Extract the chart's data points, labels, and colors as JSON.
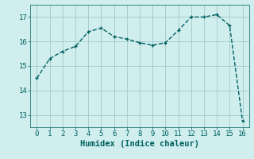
{
  "x": [
    0,
    1,
    2,
    3,
    4,
    5,
    6,
    7,
    8,
    9,
    10,
    11,
    12,
    13,
    14,
    15,
    16
  ],
  "y": [
    14.5,
    15.3,
    15.6,
    15.8,
    16.4,
    16.55,
    16.2,
    16.1,
    15.95,
    15.85,
    15.95,
    16.45,
    17.0,
    17.0,
    17.1,
    16.65,
    12.75
  ],
  "line_color": "#006060",
  "marker": "+",
  "marker_size": 3,
  "line_width": 1.0,
  "line_style": "--",
  "background_color": "#d0eeee",
  "grid_color": "#aacccc",
  "xlabel": "Humidex (Indice chaleur)",
  "xlim": [
    -0.5,
    16.5
  ],
  "ylim": [
    12.5,
    17.5
  ],
  "yticks": [
    13,
    14,
    15,
    16,
    17
  ],
  "xticks": [
    0,
    1,
    2,
    3,
    4,
    5,
    6,
    7,
    8,
    9,
    10,
    11,
    12,
    13,
    14,
    15,
    16
  ],
  "tick_fontsize": 6.5,
  "xlabel_fontsize": 7.5,
  "tick_color": "#006060"
}
